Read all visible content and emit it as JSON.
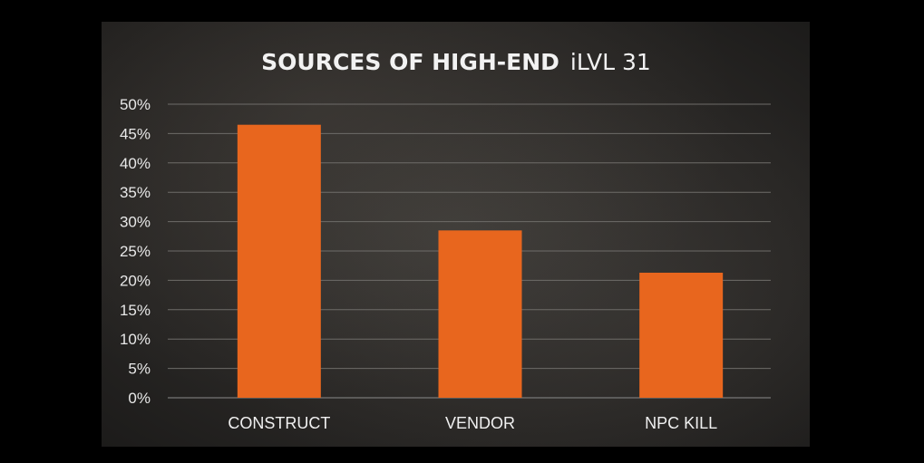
{
  "chart_data": {
    "type": "bar",
    "title_bold": "SOURCES OF HIGH-END",
    "title_light": "iLVL 31",
    "categories": [
      "CONSTRUCT",
      "VENDOR",
      "NPC KILL"
    ],
    "values": [
      46.5,
      28.5,
      21.3
    ],
    "ylim": [
      0,
      50
    ],
    "yticks": [
      "0%",
      "5%",
      "10%",
      "15%",
      "20%",
      "25%",
      "30%",
      "35%",
      "40%",
      "45%",
      "50%"
    ],
    "xlabel": "",
    "ylabel": "",
    "grid": true,
    "bar_color": "#e8661e"
  }
}
